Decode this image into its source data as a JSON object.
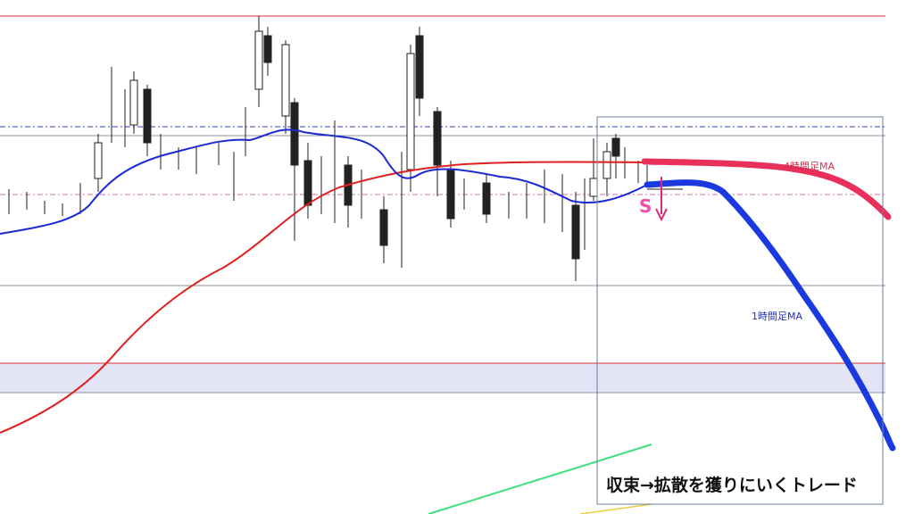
{
  "annotations": {
    "ma_4h": "4時間足MA",
    "ma_1h": "1時間足MA",
    "signal": "S",
    "caption": "収束→拡散を獲りにいくトレード"
  }
}
